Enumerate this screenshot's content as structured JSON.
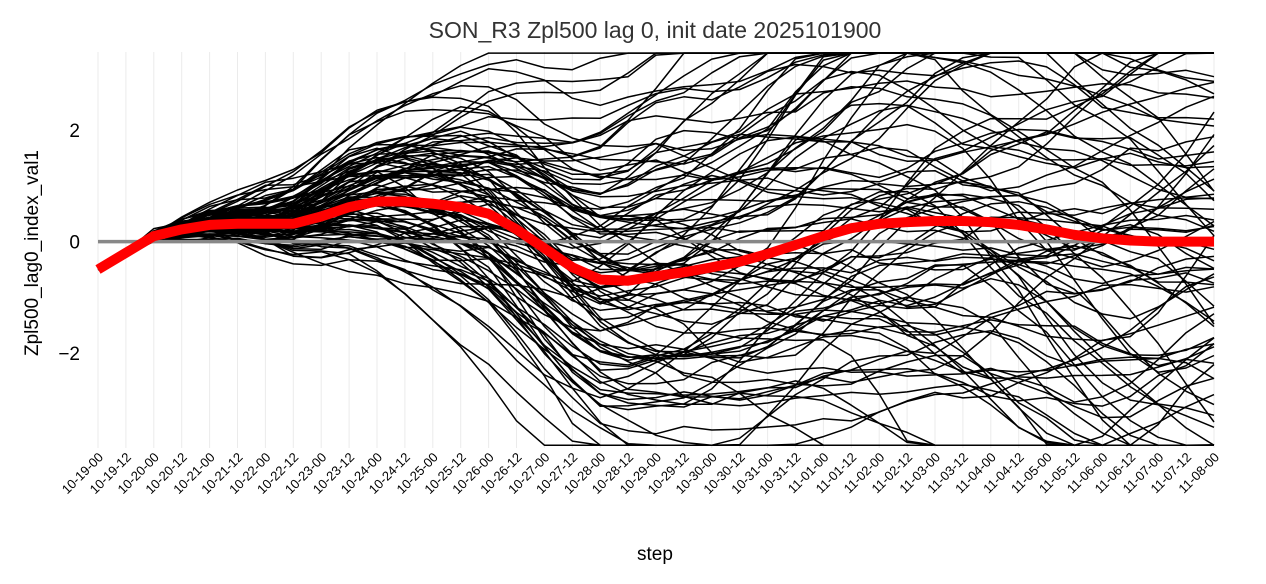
{
  "chart_data": {
    "type": "line",
    "title": "SON_R3 Zpl500 lag 0, init date 2025101900",
    "xlabel": "step",
    "ylabel": "Zpl500_lag0_index_val1",
    "ylim": [
      -3.7,
      3.4
    ],
    "grid": "vertical",
    "y_ticks": [
      -2,
      0,
      2
    ],
    "y_tick_labels": [
      "−2",
      "0",
      "2"
    ],
    "reference_line": {
      "y": 0,
      "color": "#888888"
    },
    "categories": [
      "10-19-00",
      "10-19-12",
      "10-20-00",
      "10-20-12",
      "10-21-00",
      "10-21-12",
      "10-22-00",
      "10-22-12",
      "10-23-00",
      "10-23-12",
      "10-24-00",
      "10-24-12",
      "10-25-00",
      "10-25-12",
      "10-26-00",
      "10-26-12",
      "10-27-00",
      "10-27-12",
      "10-28-00",
      "10-28-12",
      "10-29-00",
      "10-29-12",
      "10-30-00",
      "10-30-12",
      "10-31-00",
      "10-31-12",
      "11-01-00",
      "11-01-12",
      "11-02-00",
      "11-02-12",
      "11-03-00",
      "11-03-12",
      "11-04-00",
      "11-04-12",
      "11-05-00",
      "11-05-12",
      "11-06-00",
      "11-06-12",
      "11-07-00",
      "11-07-12",
      "11-08-00"
    ],
    "ensemble": {
      "members": 100,
      "color": "#000000"
    },
    "ensemble_mean": {
      "color": "#ff0000",
      "values": [
        -0.5,
        -0.2,
        0.1,
        0.22,
        0.3,
        0.32,
        0.32,
        0.32,
        0.45,
        0.62,
        0.72,
        0.72,
        0.68,
        0.62,
        0.5,
        0.22,
        -0.12,
        -0.46,
        -0.68,
        -0.7,
        -0.62,
        -0.55,
        -0.46,
        -0.36,
        -0.22,
        -0.06,
        0.1,
        0.24,
        0.32,
        0.35,
        0.37,
        0.37,
        0.35,
        0.3,
        0.22,
        0.12,
        0.06,
        0.02,
        0.0,
        0.0,
        0.0
      ]
    },
    "colors": {
      "grid": "#ebebeb"
    }
  }
}
